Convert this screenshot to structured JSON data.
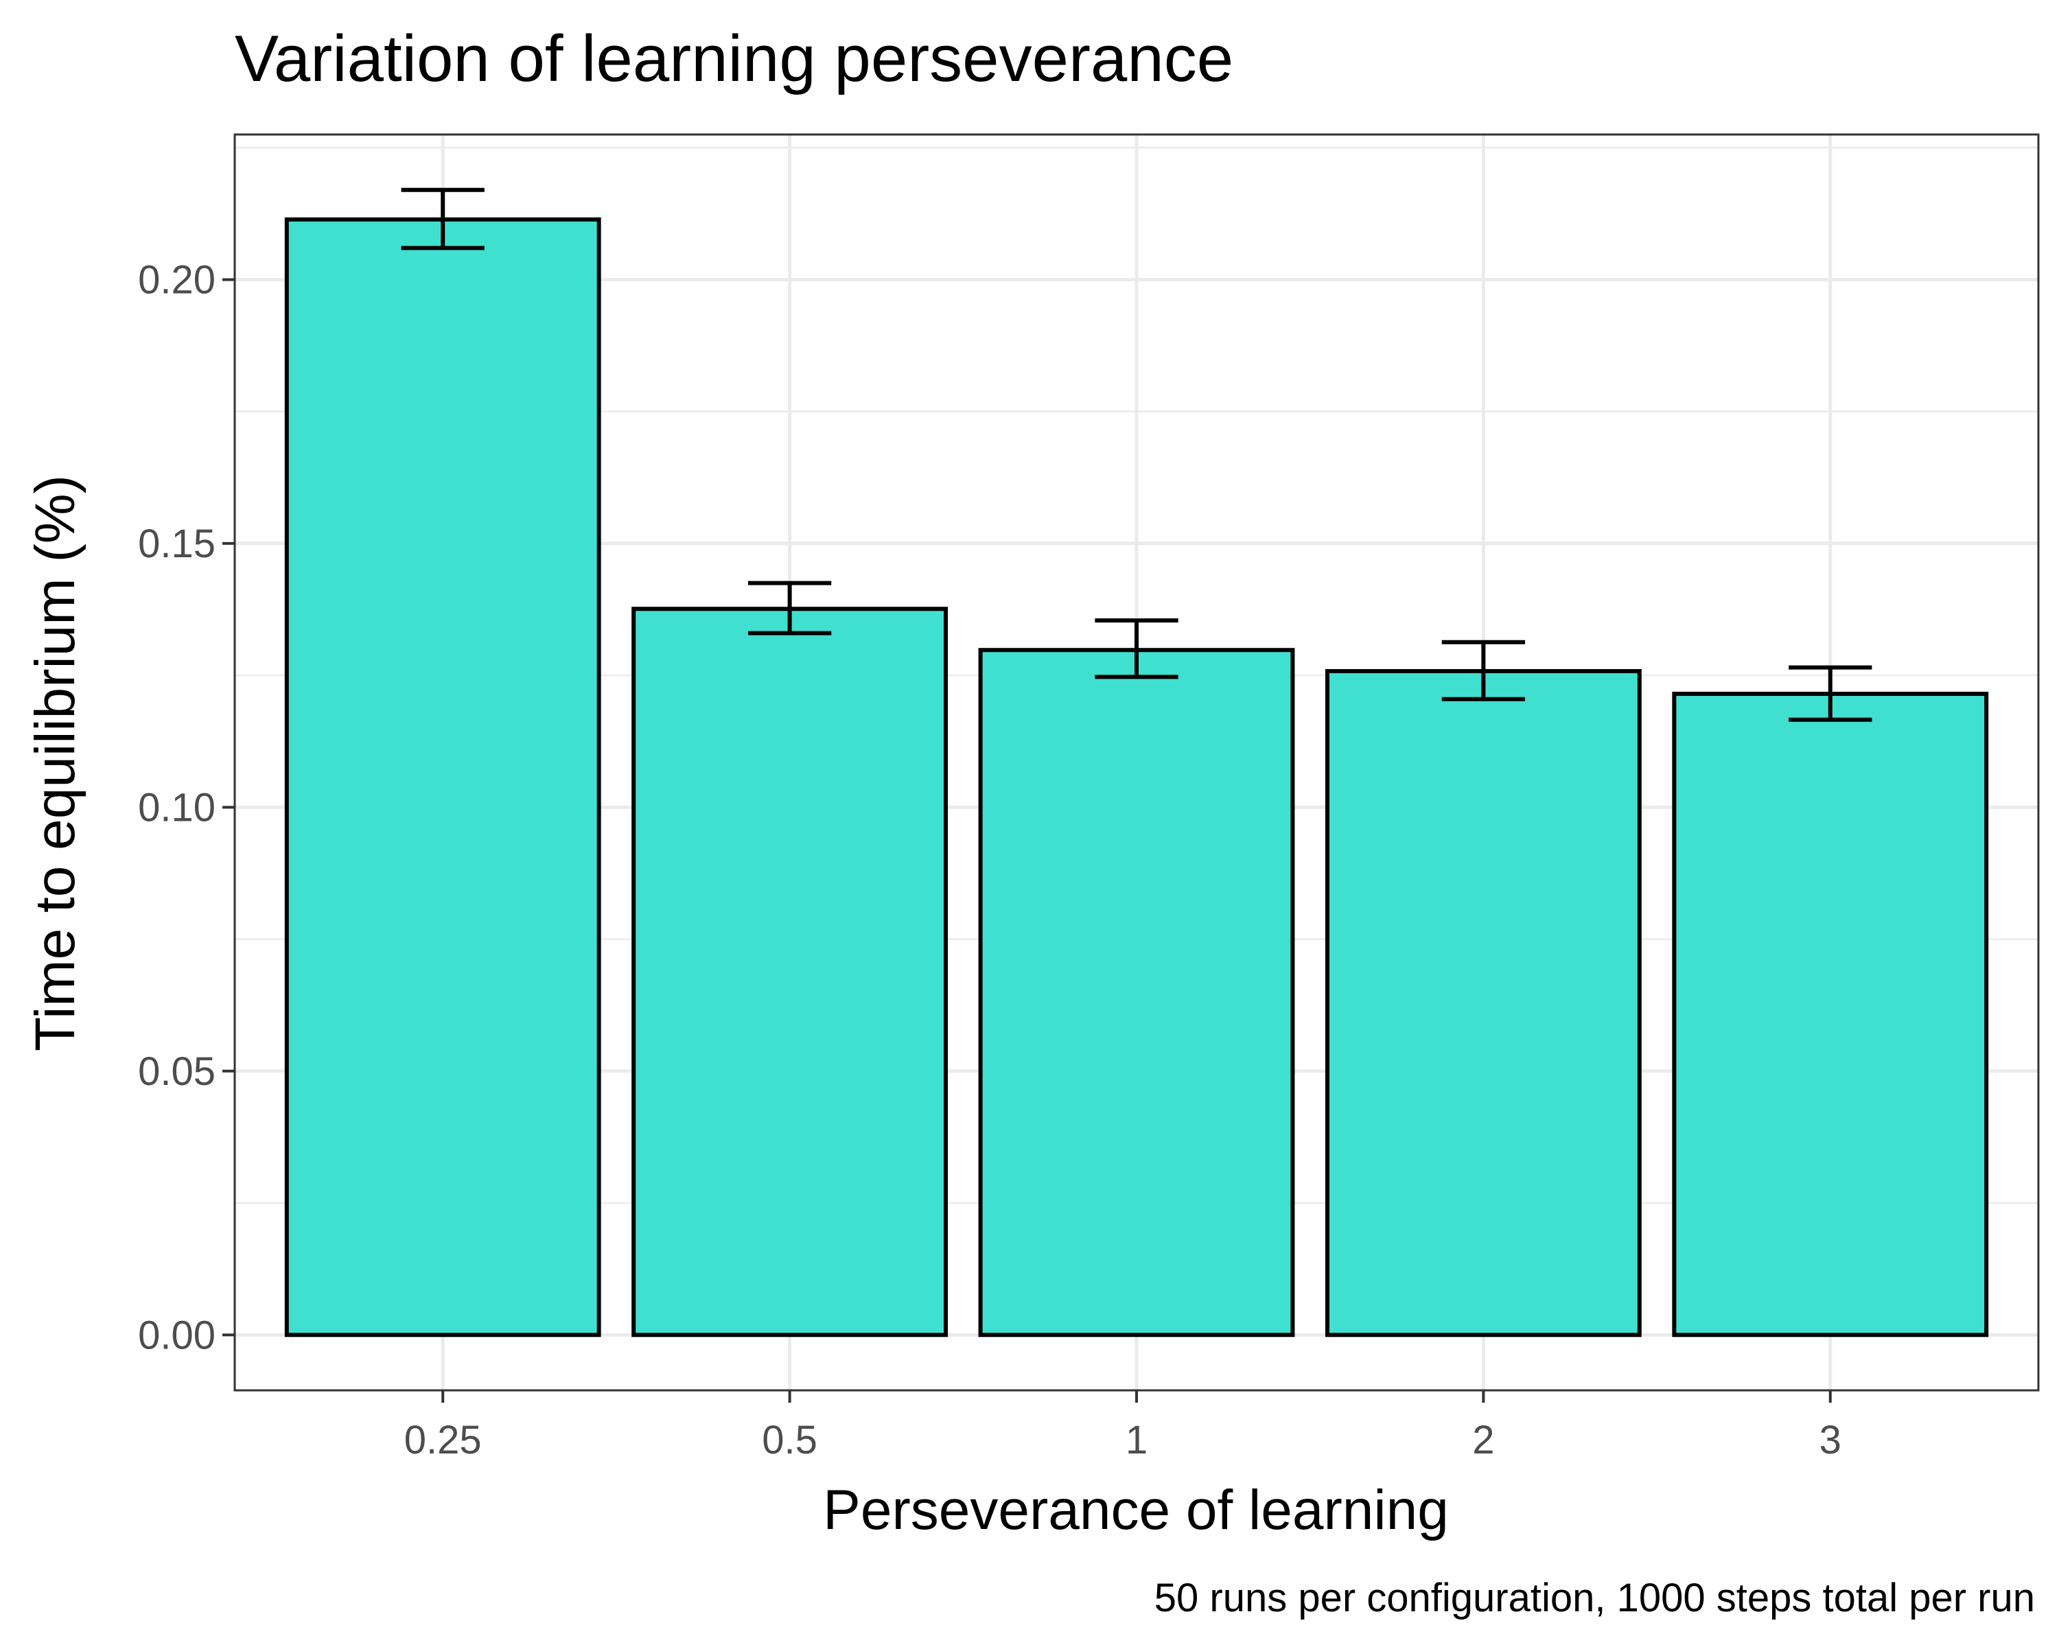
{
  "chart_data": {
    "type": "bar",
    "title": "Variation of learning perseverance",
    "xlabel": "Perseverance of learning",
    "ylabel": "Time to equilibrium (%)",
    "caption": "50 runs per configuration, 1000 steps total per run",
    "categories": [
      "0.25",
      "0.5",
      "1",
      "2",
      "3"
    ],
    "values": [
      0.2114,
      0.1376,
      0.1298,
      0.1258,
      0.1215
    ],
    "error_low": [
      0.206,
      0.133,
      0.1247,
      0.1205,
      0.1166
    ],
    "error_high": [
      0.217,
      0.1425,
      0.1354,
      0.1313,
      0.1265
    ],
    "ylim": [
      -0.0105,
      0.2275
    ],
    "yticks": [
      0.0,
      0.05,
      0.1,
      0.15,
      0.2
    ],
    "ytick_labels": [
      "0.00",
      "0.05",
      "0.10",
      "0.15",
      "0.20"
    ],
    "grid": true,
    "bar_color": "#40e0d0",
    "bar_outline": "#000000"
  }
}
